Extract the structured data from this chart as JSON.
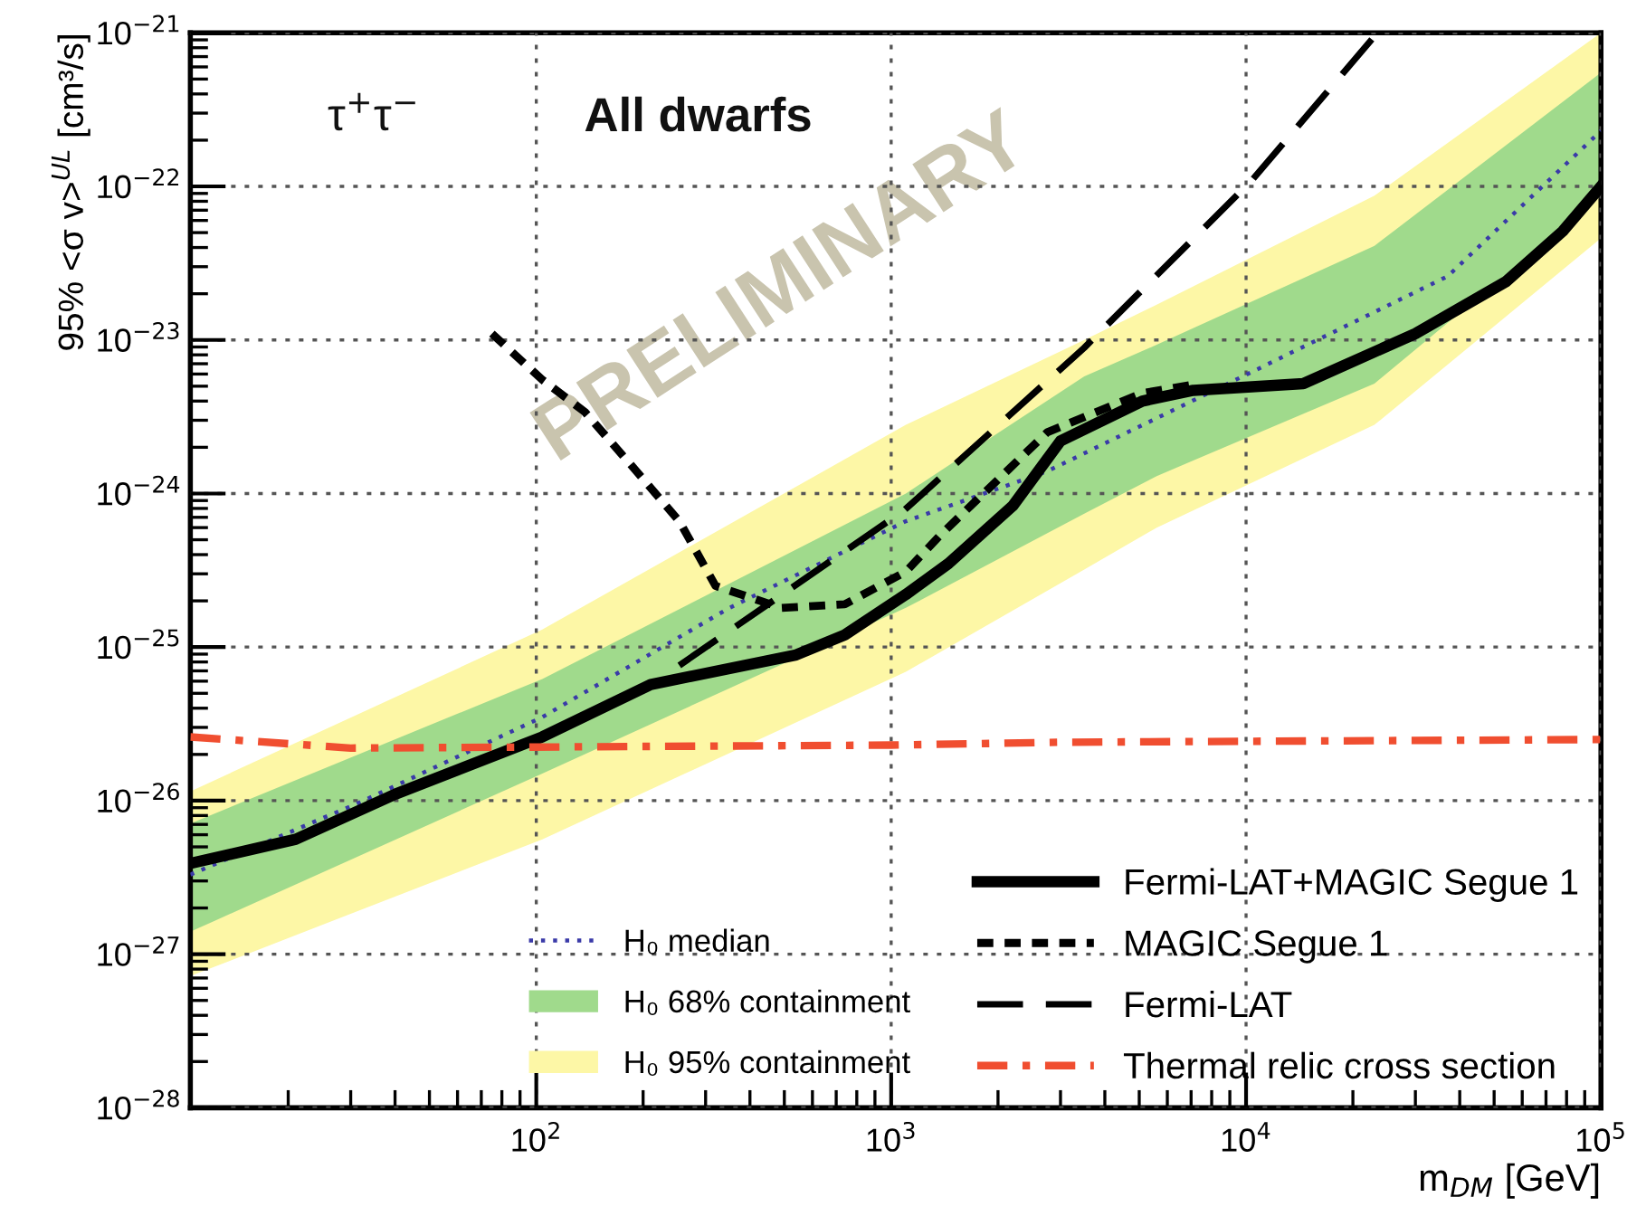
{
  "chart_data": {
    "type": "line",
    "xlabel": "m$_{DM}$ [GeV]",
    "ylabel": "95% <σ v>$^{UL}$ [cm³/s]",
    "annotations": [
      "τ$^{+}$τ$^{−}$",
      "All dwarfs",
      "PRELIMINARY"
    ],
    "log": "xy",
    "grid": true,
    "legend": "bottom right",
    "xlim": [
      10.6,
      100000
    ],
    "xticks": [
      {
        "value": 100,
        "label": "10$^{2}$"
      },
      {
        "value": 1000,
        "label": "10$^{3}$"
      },
      {
        "value": 10000,
        "label": "10$^{4}$"
      },
      {
        "value": 100000,
        "label": "10$^{5}$"
      }
    ],
    "ylim": [
      1e-28,
      1e-21
    ],
    "yticks": [
      {
        "value": 1e-28,
        "label": "10$^{−28}$"
      },
      {
        "value": 1e-27,
        "label": "10$^{−27}$"
      },
      {
        "value": 1e-26,
        "label": "10$^{−26}$"
      },
      {
        "value": 1e-25,
        "label": "10$^{−25}$"
      },
      {
        "value": 1e-24,
        "label": "10$^{−24}$"
      },
      {
        "value": 1e-23,
        "label": "10$^{−23}$"
      },
      {
        "value": 1e-22,
        "label": "10$^{−22}$"
      },
      {
        "value": 1e-21,
        "label": "10$^{−21}$"
      }
    ],
    "series": [
      {
        "name": "H₀ 95% containment",
        "color": "#fdf7a6",
        "x": [
          10.6,
          104,
          1100,
          3500,
          5600,
          23000,
          100000
        ],
        "values": [
          null,
          null,
          null,
          null,
          null,
          null,
          null
        ],
        "lower": [
          7.2e-28,
          5.6e-27,
          6.9e-26,
          3.2e-25,
          6e-25,
          2.8e-24,
          4.6e-23
        ],
        "upper": [
          1.15e-26,
          1.3e-25,
          2.8e-24,
          1e-23,
          1.7e-23,
          8.7e-23,
          1e-21
        ]
      },
      {
        "name": "H₀ 68% containment",
        "color": "#a0da8c",
        "x": [
          10.6,
          104,
          1100,
          3500,
          5600,
          23000,
          100000
        ],
        "values": [
          null,
          null,
          null,
          null,
          null,
          null,
          null
        ],
        "lower": [
          1.4e-27,
          1.5e-26,
          1.8e-25,
          7.4e-25,
          1.3e-24,
          5.2e-24,
          8.7e-23
        ],
        "upper": [
          7.1e-27,
          6.2e-26,
          1e-24,
          5.8e-24,
          9.3e-24,
          4.1e-23,
          5.5e-22
        ]
      },
      {
        "name": "H₀ median",
        "color": "#3a3aa8",
        "line_style": "dotted",
        "x": [
          10.6,
          32,
          104,
          350,
          1100,
          2760,
          9800,
          37000,
          100000
        ],
        "values": [
          3.3e-27,
          9.8e-27,
          3.5e-26,
          1.8e-25,
          6.6e-25,
          1.4e-24,
          5.8e-24,
          2.6e-23,
          2.3e-22
        ]
      },
      {
        "name": "Fermi-LAT+MAGIC Segue 1",
        "color": "#000000",
        "line_style": "solid",
        "x": [
          10.6,
          21,
          40,
          104,
          210,
          540,
          740,
          1100,
          1450,
          2200,
          3000,
          5100,
          7100,
          14500,
          30000,
          54000,
          78000,
          100000
        ],
        "values": [
          3.9e-27,
          5.6e-27,
          1.1e-26,
          2.6e-26,
          5.7e-26,
          8.9e-26,
          1.2e-25,
          2.2e-25,
          3.5e-25,
          8.3e-25,
          2.2e-24,
          4e-24,
          4.7e-24,
          5.2e-24,
          1.1e-23,
          2.4e-23,
          5.1e-23,
          1e-22
        ]
      },
      {
        "name": "MAGIC Segue 1",
        "color": "#000000",
        "line_style": "dashed",
        "x": [
          75,
          104,
          137,
          182,
          253,
          320,
          490,
          740,
          1100,
          1380,
          2750,
          5100,
          7400
        ],
        "values": [
          1.1e-23,
          5.5e-24,
          3.4e-24,
          1.6e-24,
          6.6e-25,
          2.5e-25,
          1.8e-25,
          1.9e-25,
          3.1e-25,
          5.4e-25,
          2.5e-24,
          4.5e-24,
          5.2e-24
        ]
      },
      {
        "name": "Fermi-LAT",
        "color": "#000000",
        "line_style": "longdashed",
        "x": [
          253,
          1090,
          3500,
          10400,
          23000
        ],
        "values": [
          7.6e-26,
          7.8e-25,
          8.9e-24,
          1.1e-22,
          9.5e-22
        ]
      },
      {
        "name": "Thermal relic cross section",
        "color": "#f04e30",
        "line_style": "dashdot",
        "x": [
          10.6,
          30,
          1000,
          3000,
          100000
        ],
        "values": [
          2.6e-26,
          2.2e-26,
          2.3e-26,
          2.4e-26,
          2.5e-26
        ]
      }
    ]
  }
}
